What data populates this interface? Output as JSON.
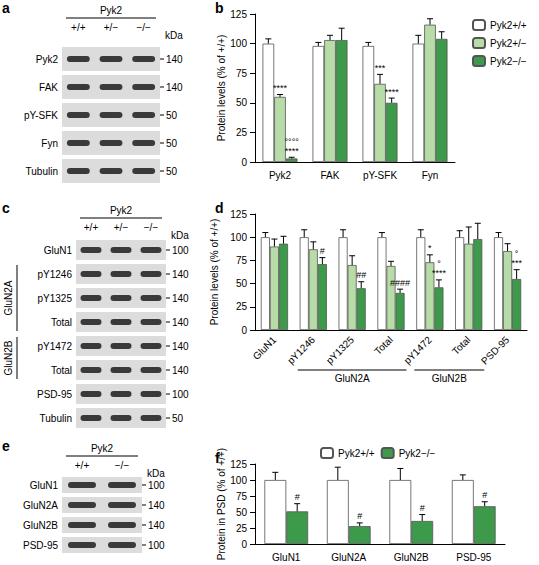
{
  "chart_data": [
    {
      "type": "bar",
      "panel": "b",
      "y_label": "Protein levels (% of +/+)",
      "categories": [
        "Pyk2",
        "FAK",
        "pY-SFK",
        "Fyn"
      ],
      "ylim": [
        0,
        125
      ],
      "yticks": [
        0,
        25,
        50,
        75,
        100,
        125
      ],
      "grid": false,
      "legend": "top-right",
      "series": [
        {
          "name": "Pyk2+/+",
          "color": "#ffffff",
          "values": [
            100,
            98,
            98,
            100
          ],
          "errors": [
            4,
            3,
            3,
            7
          ],
          "annotations": [
            null,
            null,
            null,
            null
          ]
        },
        {
          "name": "Pyk2+/−",
          "color": "#b7dca8",
          "values": [
            55,
            103,
            66,
            116
          ],
          "errors": [
            2,
            4,
            8,
            5
          ],
          "annotations": [
            "****",
            null,
            "***",
            null
          ]
        },
        {
          "name": "Pyk2−/−",
          "color": "#3d9a4b",
          "values": [
            3,
            103,
            50,
            104
          ],
          "errors": [
            1,
            10,
            4,
            6
          ],
          "annotations": [
            [
              "°°°°",
              "****"
            ],
            null,
            "****",
            null
          ]
        }
      ]
    },
    {
      "type": "bar",
      "panel": "d",
      "y_label": "Protein levels (% of +/+)",
      "categories": [
        "GluN1",
        "pY1246",
        "pY1325",
        "Total",
        "pY1472",
        "Total",
        "PSD-95"
      ],
      "category_groups": [
        null,
        "GluN2A",
        "GluN2A",
        "GluN2A",
        "GluN2B",
        "GluN2B",
        null
      ],
      "ylim": [
        0,
        125
      ],
      "yticks": [
        0,
        25,
        50,
        75,
        100,
        125
      ],
      "grid": false,
      "series": [
        {
          "name": "Pyk2+/+",
          "color": "#ffffff",
          "values": [
            100,
            100,
            100,
            100,
            100,
            100,
            100
          ],
          "errors": [
            5,
            8,
            8,
            5,
            8,
            7,
            5
          ],
          "annotations": [
            null,
            null,
            null,
            null,
            null,
            null,
            null
          ]
        },
        {
          "name": "Pyk2+/−",
          "color": "#b7dca8",
          "values": [
            90,
            87,
            70,
            69,
            73,
            93,
            85
          ],
          "errors": [
            8,
            8,
            10,
            5,
            8,
            18,
            8
          ],
          "annotations": [
            null,
            null,
            null,
            null,
            "*",
            null,
            null
          ]
        },
        {
          "name": "Pyk2−/−",
          "color": "#3d9a4b",
          "values": [
            93,
            71,
            45,
            40,
            46,
            98,
            55
          ],
          "errors": [
            8,
            7,
            7,
            4,
            8,
            17,
            10
          ],
          "annotations": [
            null,
            "#",
            "##",
            "####",
            [
              "°",
              "****"
            ],
            null,
            [
              "°",
              "***"
            ]
          ]
        }
      ]
    },
    {
      "type": "bar",
      "panel": "f",
      "y_label": "Protein in PSD (% of +/+)",
      "categories": [
        "GluN1",
        "GluN2A",
        "GluN2B",
        "PSD-95"
      ],
      "ylim": [
        0,
        125
      ],
      "yticks": [
        0,
        25,
        50,
        75,
        100,
        125
      ],
      "grid": false,
      "legend": "top",
      "series": [
        {
          "name": "Pyk2+/+",
          "color": "#ffffff",
          "values": [
            100,
            100,
            100,
            100
          ],
          "errors": [
            12,
            20,
            18,
            8
          ],
          "annotations": [
            null,
            null,
            null,
            null
          ]
        },
        {
          "name": "Pyk2−/−",
          "color": "#3d9a4b",
          "values": [
            51,
            28,
            36,
            59
          ],
          "errors": [
            12,
            5,
            10,
            7
          ],
          "annotations": [
            "#",
            "#",
            "#",
            "#"
          ]
        }
      ]
    }
  ],
  "blots": [
    {
      "panel": "a",
      "header": "Pyk2",
      "lanes": [
        "+/+",
        "+/−",
        "−/−"
      ],
      "unit": "kDa",
      "rows": [
        {
          "label": "Pyk2",
          "kda": 140
        },
        {
          "label": "FAK",
          "kda": 140
        },
        {
          "label": "pY-SFK",
          "kda": 50
        },
        {
          "label": "Fyn",
          "kda": 50
        },
        {
          "label": "Tubulin",
          "kda": 50
        }
      ]
    },
    {
      "panel": "c",
      "header": "Pyk2",
      "lanes": [
        "+/+",
        "+/−",
        "−/−"
      ],
      "unit": "kDa",
      "rows": [
        {
          "label": "GluN1",
          "kda": 100
        },
        {
          "label": "pY1246",
          "group": "GluN2A",
          "kda": 140
        },
        {
          "label": "pY1325",
          "group": "GluN2A",
          "kda": 140
        },
        {
          "label": "Total",
          "group": "GluN2A",
          "kda": 140
        },
        {
          "label": "pY1472",
          "group": "GluN2B",
          "kda": 140
        },
        {
          "label": "Total",
          "group": "GluN2B",
          "kda": 140
        },
        {
          "label": "PSD-95",
          "kda": 100
        },
        {
          "label": "Tubulin",
          "kda": 50
        }
      ]
    },
    {
      "panel": "e",
      "header": "Pyk2",
      "lanes": [
        "+/+",
        "−/−"
      ],
      "unit": "kDa",
      "rows": [
        {
          "label": "GluN1",
          "kda": 100
        },
        {
          "label": "GluN2A",
          "kda": 140
        },
        {
          "label": "GluN2B",
          "kda": 140
        },
        {
          "label": "PSD-95",
          "kda": 100
        }
      ]
    }
  ]
}
